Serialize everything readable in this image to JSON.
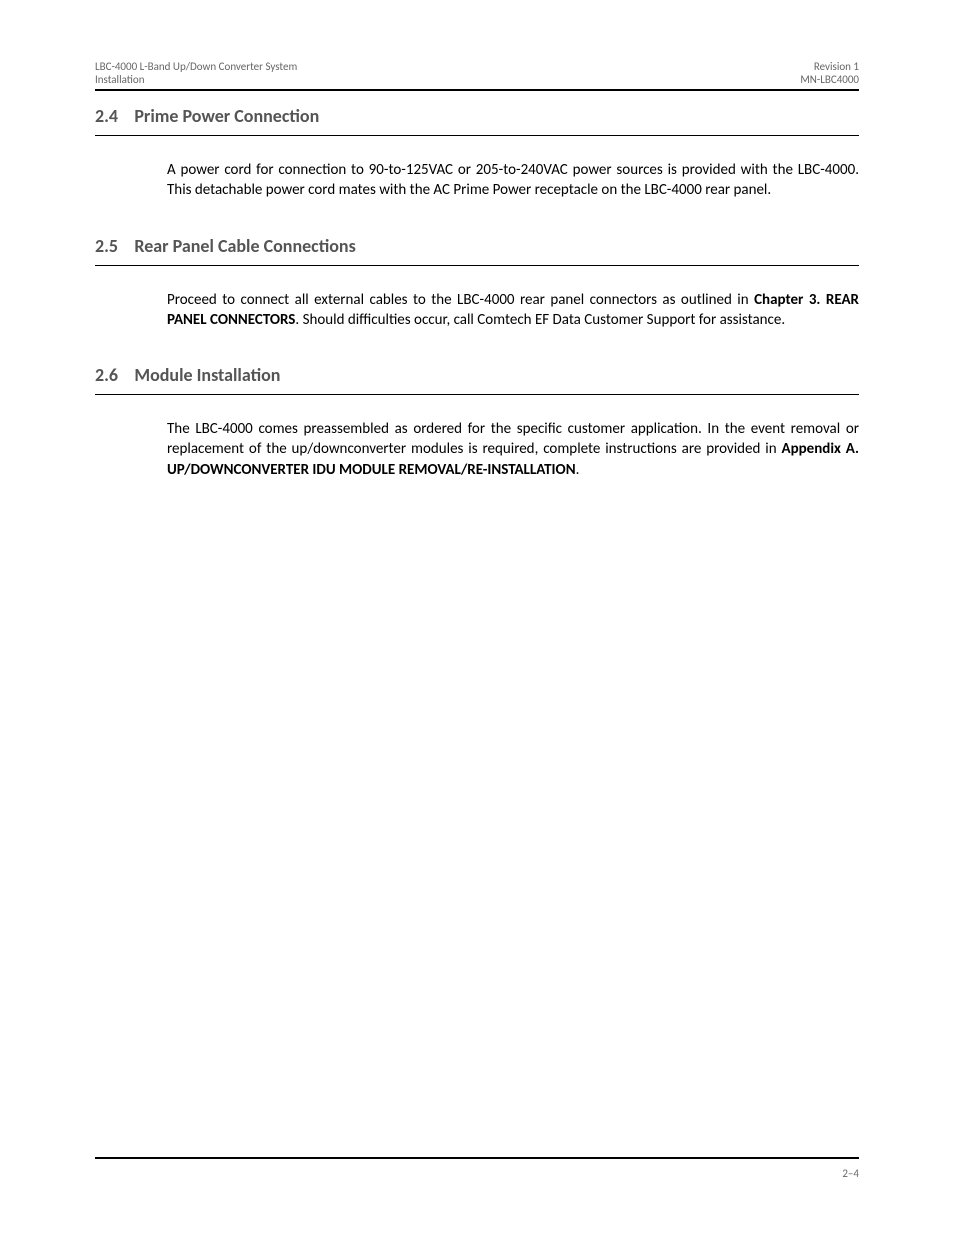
{
  "header": {
    "left_line1": "LBC-4000 L-Band Up/Down Converter System",
    "left_line2": "Installation",
    "right_line1": "Revision 1",
    "right_line2": "MN-LBC4000"
  },
  "sections": [
    {
      "heading_number": "2.4",
      "heading_title": "Prime Power Connection",
      "text_before": "A power cord for connection to 90-to-125VAC or 205-to-240VAC power sources is provided with the LBC-4000. This detachable power cord mates with the AC Prime Power receptacle on the LBC-4000 rear panel.",
      "bold_inline": "",
      "text_after": ""
    },
    {
      "heading_number": "2.5",
      "heading_title": "Rear Panel Cable Connections",
      "text_before": "Proceed to connect all external cables to the LBC-4000 rear panel connectors as outlined in ",
      "bold_inline": "Chapter 3. REAR PANEL CONNECTORS",
      "text_after": ". Should difficulties occur, call Comtech EF Data Customer Support for assistance."
    },
    {
      "heading_number": "2.6",
      "heading_title": "Module Installation",
      "text_before": "The LBC-4000 comes preassembled as ordered for the specific customer application. In the event removal or replacement of the up/downconverter modules is required, complete instructions are provided in ",
      "bold_inline": "Appendix A. UP/DOWNCONVERTER IDU MODULE REMOVAL/RE-INSTALLATION",
      "text_after": "."
    }
  ],
  "footer": {
    "page_number": "2–4"
  },
  "style": {
    "body_font_size": 15,
    "heading_font_size": 18,
    "heading_color": "#555555",
    "text_color": "#000000",
    "header_footer_color": "#666666",
    "background": "#ffffff"
  }
}
